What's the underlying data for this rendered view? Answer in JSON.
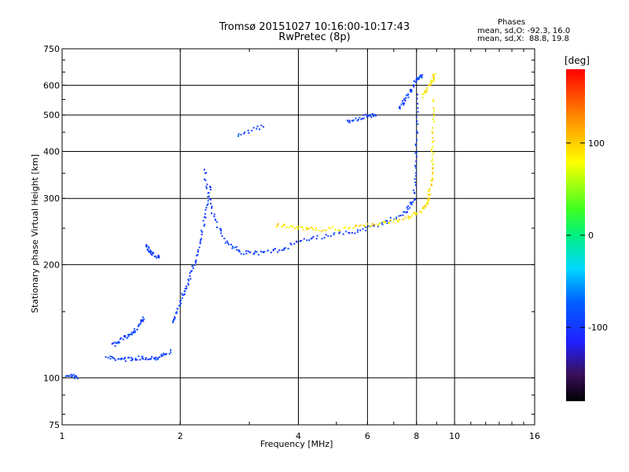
{
  "header": {
    "title": "Tromsø 20151027 10:16:00-10:17:43",
    "subtitle": "RwPretec (8p)",
    "phases_label": "Phases",
    "stat_0": "mean, sd,O: -92.3, 16.0",
    "stat_x": "mean, sd,X:  88.8, 19.8"
  },
  "colorbar": {
    "unit": "[deg]",
    "range": [
      -180,
      180
    ],
    "ticks": [
      {
        "value": 100,
        "label": "100"
      },
      {
        "value": 0,
        "label": "0"
      },
      {
        "value": -100,
        "label": "-100"
      }
    ]
  },
  "chart_data": {
    "type": "scatter",
    "title": "Tromsø 20151027 10:16:00-10:17:43",
    "subtitle": "RwPretec (8p)",
    "xlabel": "Frequency [MHz]",
    "ylabel": "Stationary phase Virtual Height [km]",
    "x_scale": "log",
    "y_scale": "log",
    "xlim": [
      1,
      16
    ],
    "ylim": [
      75,
      750
    ],
    "grid": true,
    "x_ticks": [
      {
        "value": 1,
        "label": "1"
      },
      {
        "value": 2,
        "label": "2"
      },
      {
        "value": 4,
        "label": "4"
      },
      {
        "value": 6,
        "label": "6"
      },
      {
        "value": 8,
        "label": "8"
      },
      {
        "value": 10,
        "label": "10"
      },
      {
        "value": 16,
        "label": "16"
      }
    ],
    "y_ticks": [
      {
        "value": 75,
        "label": "75"
      },
      {
        "value": 100,
        "label": "100"
      },
      {
        "value": 200,
        "label": "200"
      },
      {
        "value": 300,
        "label": "300"
      },
      {
        "value": 400,
        "label": "400"
      },
      {
        "value": 500,
        "label": "500"
      },
      {
        "value": 600,
        "label": "600"
      },
      {
        "value": 750,
        "label": "750"
      }
    ],
    "color_encoding": "phase [deg]",
    "series": [
      {
        "mode": "O",
        "phase_mean": -92.3,
        "phase_sd": 16.0,
        "traces": [
          {
            "x": [
              1.03,
              1.1
            ],
            "y": [
              102,
              100
            ]
          },
          {
            "x": [
              1.3,
              1.45,
              1.6,
              1.75,
              1.9
            ],
            "y": [
              113,
              112,
              113,
              113,
              118
            ]
          },
          {
            "x": [
              1.35,
              1.45,
              1.55,
              1.62
            ],
            "y": [
              122,
              128,
              135,
              145
            ]
          },
          {
            "x": [
              1.63,
              1.68,
              1.78
            ],
            "y": [
              225,
              215,
              208
            ]
          },
          {
            "x": [
              1.92,
              2.0,
              2.1,
              2.2,
              2.3,
              2.4
            ],
            "y": [
              140,
              160,
              180,
              210,
              260,
              330
            ]
          },
          {
            "x": [
              2.3,
              2.4,
              2.6,
              2.9,
              3.3,
              3.8
            ],
            "y": [
              360,
              280,
              230,
              215,
              215,
              222
            ]
          },
          {
            "x": [
              3.8,
              4.5,
              5.5,
              6.5,
              7.5,
              7.9,
              8.0,
              8.05
            ],
            "y": [
              228,
              236,
              244,
              256,
              275,
              300,
              400,
              580
            ]
          },
          {
            "x": [
              2.8,
              3.3
            ],
            "y": [
              440,
              470
            ]
          },
          {
            "x": [
              5.3,
              5.9,
              6.3
            ],
            "y": [
              480,
              495,
              500
            ]
          },
          {
            "x": [
              7.2,
              7.6,
              8.0,
              8.3
            ],
            "y": [
              520,
              560,
              620,
              640
            ]
          }
        ]
      },
      {
        "mode": "X",
        "phase_mean": 88.8,
        "phase_sd": 19.8,
        "traces": [
          {
            "x": [
              3.5,
              4.0,
              4.5,
              5.5,
              6.5,
              7.5,
              8.3,
              8.6,
              8.75,
              8.8,
              8.85
            ],
            "y": [
              255,
              250,
              248,
              250,
              258,
              265,
              280,
              300,
              340,
              420,
              560
            ]
          },
          {
            "x": [
              8.3,
              8.7,
              8.9
            ],
            "y": [
              560,
              610,
              640
            ]
          }
        ]
      }
    ]
  }
}
